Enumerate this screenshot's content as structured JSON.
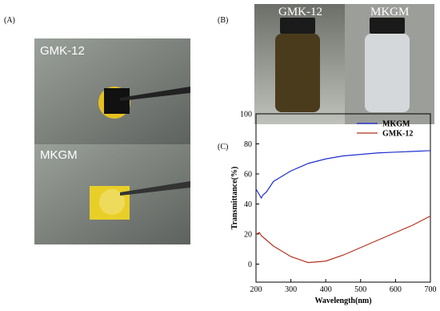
{
  "panel_labels": [
    "(A)",
    "(B)",
    "(C)"
  ],
  "photo_a_labels": [
    "GMK-12",
    "MKGM"
  ],
  "photo_b_labels": [
    "GMK-12",
    "MKGM"
  ],
  "chart_data": {
    "type": "line",
    "x_label": "Wavelength(nm)",
    "y_label": "Transmittance(%)",
    "x": [
      200,
      210,
      215,
      220,
      230,
      250,
      300,
      350,
      400,
      450,
      500,
      550,
      600,
      650,
      700
    ],
    "series": [
      {
        "name": "MKGM",
        "color": "#1f2fd0",
        "values": [
          50,
          46,
          44,
          46,
          48,
          55,
          62,
          67,
          70,
          72,
          73,
          74,
          74.5,
          75,
          75.5
        ]
      },
      {
        "name": "GMK-12",
        "color": "#b5321e",
        "values": [
          20,
          21,
          19,
          18,
          16,
          12,
          5,
          1,
          2,
          6,
          11,
          16,
          21,
          26,
          32
        ]
      }
    ],
    "xlim": [
      200,
      700
    ],
    "xticks": [
      200,
      300,
      400,
      500,
      600,
      700
    ],
    "ylim": [
      -12,
      100
    ],
    "yticks": [
      0,
      20,
      40,
      60,
      80,
      100
    ],
    "legend": "upper-right"
  }
}
